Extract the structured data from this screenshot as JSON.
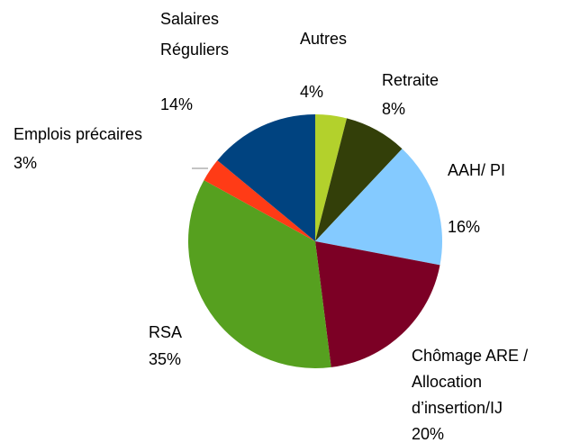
{
  "chart_data": {
    "type": "pie",
    "categories": [
      [
        "Autres"
      ],
      [
        "Retraite"
      ],
      [
        "AAH/ PI"
      ],
      [
        "Chômage ARE /",
        "Allocation",
        " d’insertion/IJ"
      ],
      [
        "RSA"
      ],
      [
        "Emplois précaires"
      ],
      [
        "Salaires",
        "Réguliers"
      ]
    ],
    "values": [
      4,
      8,
      16,
      20,
      35,
      3,
      14
    ],
    "value_labels": [
      "4%",
      "8%",
      "16%",
      "20%",
      "35%",
      "3%",
      "14%"
    ],
    "colors": [
      "#b3d12c",
      "#333f09",
      "#84caff",
      "#7c0025",
      "#56a01f",
      "#ff3b16",
      "#004380"
    ]
  }
}
